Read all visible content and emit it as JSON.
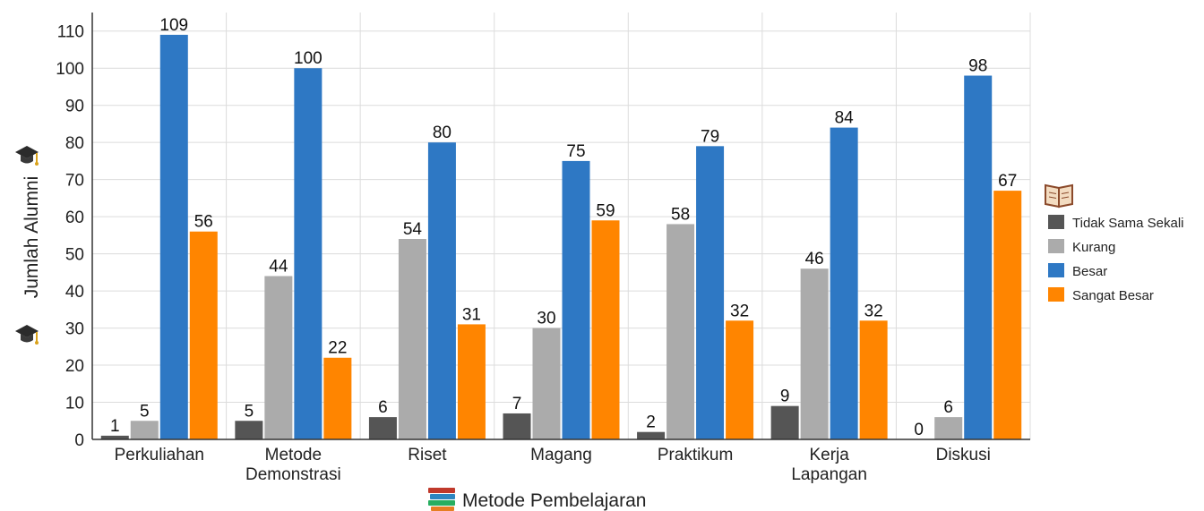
{
  "chart_data": {
    "type": "bar",
    "title": "",
    "xlabel": "Metode Pembelajaran",
    "ylabel": "Jumlah Alumni",
    "ylim": [
      0,
      115
    ],
    "yticks": [
      0,
      10,
      20,
      30,
      40,
      50,
      60,
      70,
      80,
      90,
      100,
      110
    ],
    "grid": true,
    "legend_position": "right",
    "categories": [
      [
        "Perkuliahan"
      ],
      [
        "Metode",
        "Demonstrasi"
      ],
      [
        "Riset"
      ],
      [
        "Magang"
      ],
      [
        "Praktikum"
      ],
      [
        "Kerja",
        "Lapangan"
      ],
      [
        "Diskusi"
      ]
    ],
    "series": [
      {
        "name": "Tidak Sama Sekali",
        "color": "#555555",
        "values": [
          1,
          5,
          6,
          7,
          2,
          9,
          0
        ]
      },
      {
        "name": "Kurang",
        "color": "#ababab",
        "values": [
          5,
          44,
          54,
          30,
          58,
          46,
          6
        ]
      },
      {
        "name": "Besar",
        "color": "#2e78c4",
        "values": [
          109,
          100,
          80,
          75,
          79,
          84,
          98
        ]
      },
      {
        "name": "Sangat Besar",
        "color": "#ff8500",
        "values": [
          56,
          22,
          31,
          59,
          32,
          32,
          67
        ]
      }
    ],
    "icons": {
      "ylabel_top": "graduation-cap-icon",
      "ylabel_bottom": "graduation-cap-icon",
      "xlabel": "books-icon",
      "legend": "open-book-icon"
    }
  }
}
